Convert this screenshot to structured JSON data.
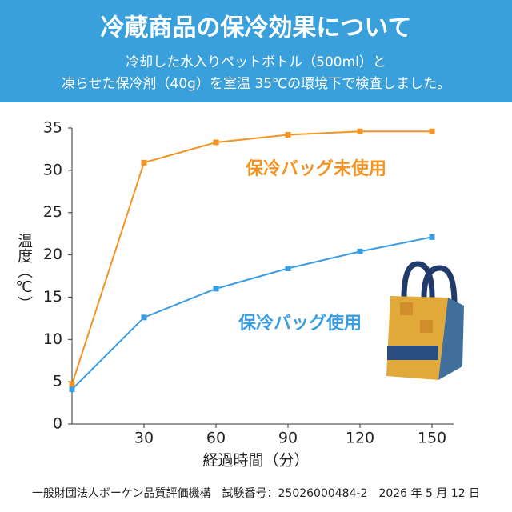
{
  "chart_data": {
    "type": "line",
    "title": "冷蔵商品の保冷効果について",
    "subtitle": [
      "冷却した水入りペットボトル（500ml）と",
      "凍らせた保冷剤（40g）を室温 35℃の環境下で検査しました。"
    ],
    "x_label": "経過時間（分）",
    "y_label": "温度（℃）",
    "x": [
      0,
      30,
      60,
      90,
      120,
      150
    ],
    "series": [
      {
        "name": "保冷バッグ未使用",
        "color": "#f39322",
        "values": [
          4.7,
          30.9,
          33.3,
          34.2,
          34.6,
          34.6
        ]
      },
      {
        "name": "保冷バッグ使用",
        "color": "#3b9de1",
        "values": [
          4.1,
          12.6,
          16.0,
          18.4,
          20.4,
          22.1
        ]
      }
    ],
    "xlim": [
      0,
      159
    ],
    "xticks": [
      30,
      60,
      90,
      120,
      150
    ],
    "ylim": [
      0,
      35
    ],
    "yticks": [
      0,
      5,
      10,
      15,
      20,
      25,
      30,
      35
    ],
    "footer": "一般財団法人ボーケン品質評価機構　試験番号：25026000484-2　2026 年 5 月 12 日"
  }
}
